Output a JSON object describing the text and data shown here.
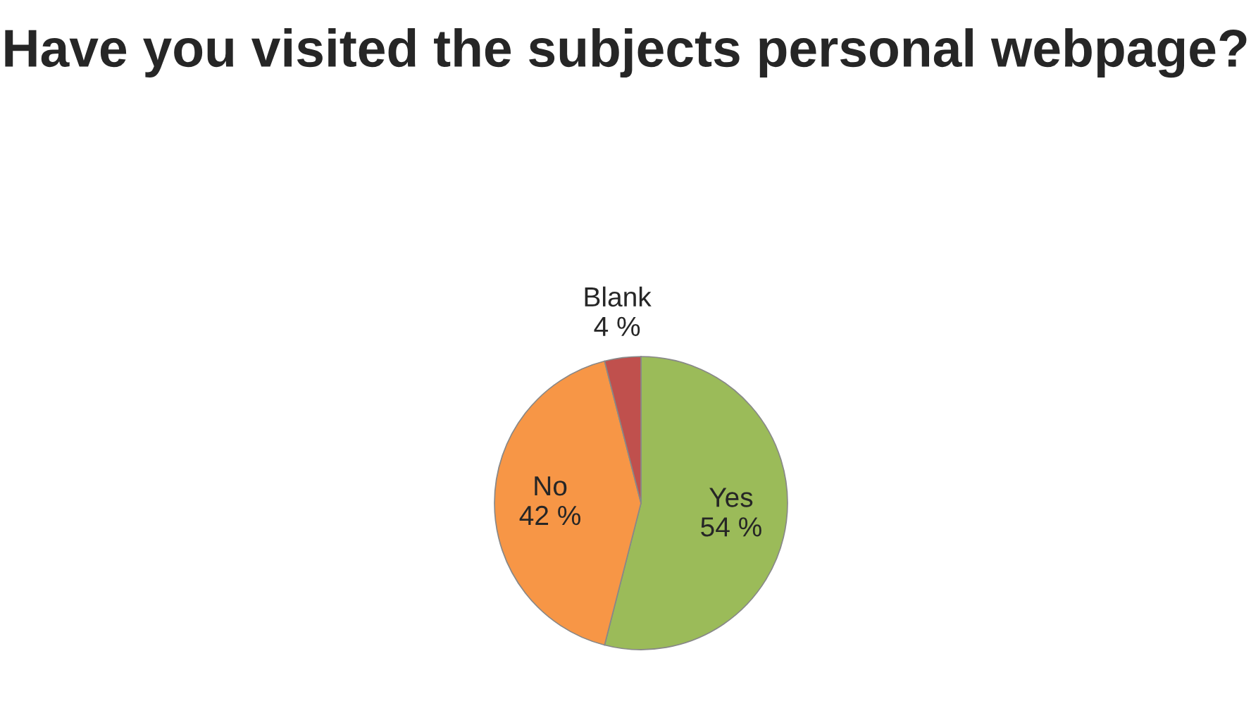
{
  "chart_data": {
    "type": "pie",
    "title": "Have you visited the subjects personal webpage?",
    "categories": [
      "Yes",
      "No",
      "Blank"
    ],
    "values": [
      54,
      42,
      4
    ],
    "colors": [
      "#9bbb59",
      "#f79646",
      "#c0504d"
    ],
    "value_labels": [
      "54 %",
      "42 %",
      "4 %"
    ],
    "legend": false
  }
}
